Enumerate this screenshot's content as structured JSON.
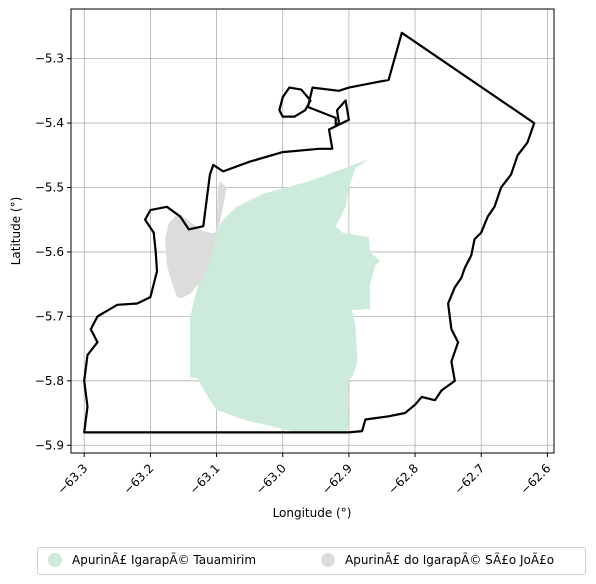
{
  "chart_data": {
    "type": "map",
    "xlabel": "Longitude (°)",
    "ylabel": "Latitude (°)",
    "xlim": [
      -63.32,
      -62.59
    ],
    "ylim": [
      -5.912,
      -5.223
    ],
    "xticks": [
      -63.3,
      -63.2,
      -63.1,
      -63.0,
      -62.9,
      -62.8,
      -62.7,
      -62.6
    ],
    "xtick_labels": [
      "−63.3",
      "−63.2",
      "−63.1",
      "−63.0",
      "−62.9",
      "−62.8",
      "−62.7",
      "−62.6"
    ],
    "yticks": [
      -5.3,
      -5.4,
      -5.5,
      -5.6,
      -5.7,
      -5.8,
      -5.9
    ],
    "ytick_labels": [
      "−5.3",
      "−5.4",
      "−5.5",
      "−5.6",
      "−5.7",
      "−5.8",
      "−5.9"
    ],
    "grid": true,
    "legend_position": "bottom, outside plot",
    "series": [
      {
        "name": "ApurinÃ£ IgarapÃ© Tauamirim",
        "color": "#cdebdb",
        "kind": "filled-polygon",
        "polygon": [
          [
            -63.07,
            -5.53
          ],
          [
            -63.03,
            -5.51
          ],
          [
            -62.96,
            -5.49
          ],
          [
            -62.92,
            -5.475
          ],
          [
            -62.87,
            -5.456
          ],
          [
            -62.89,
            -5.47
          ],
          [
            -62.9,
            -5.5
          ],
          [
            -62.905,
            -5.53
          ],
          [
            -62.92,
            -5.56
          ],
          [
            -62.91,
            -5.57
          ],
          [
            -62.87,
            -5.577
          ],
          [
            -62.868,
            -5.6
          ],
          [
            -62.853,
            -5.614
          ],
          [
            -62.86,
            -5.62
          ],
          [
            -62.868,
            -5.65
          ],
          [
            -62.868,
            -5.688
          ],
          [
            -62.885,
            -5.69
          ],
          [
            -62.895,
            -5.69
          ],
          [
            -62.89,
            -5.715
          ],
          [
            -62.887,
            -5.77
          ],
          [
            -62.893,
            -5.79
          ],
          [
            -62.9,
            -5.8
          ],
          [
            -62.902,
            -5.83
          ],
          [
            -62.9,
            -5.86
          ],
          [
            -62.903,
            -5.88
          ],
          [
            -62.98,
            -5.88
          ],
          [
            -63.02,
            -5.87
          ],
          [
            -63.06,
            -5.86
          ],
          [
            -63.1,
            -5.845
          ],
          [
            -63.11,
            -5.83
          ],
          [
            -63.13,
            -5.795
          ],
          [
            -63.14,
            -5.795
          ],
          [
            -63.14,
            -5.75
          ],
          [
            -63.14,
            -5.7
          ],
          [
            -63.13,
            -5.66
          ],
          [
            -63.12,
            -5.62
          ],
          [
            -63.11,
            -5.58
          ],
          [
            -63.09,
            -5.55
          ]
        ]
      },
      {
        "name": "ApurinÃ£ do IgarapÃ© SÃ£o JoÃ£o",
        "color": "#dcdcdc",
        "kind": "filled-polygon",
        "polygon": [
          [
            -63.158,
            -5.54
          ],
          [
            -63.14,
            -5.553
          ],
          [
            -63.12,
            -5.568
          ],
          [
            -63.1,
            -5.572
          ],
          [
            -63.094,
            -5.55
          ],
          [
            -63.09,
            -5.53
          ],
          [
            -63.085,
            -5.5
          ],
          [
            -63.095,
            -5.49
          ],
          [
            -63.098,
            -5.5
          ],
          [
            -63.1,
            -5.56
          ],
          [
            -63.105,
            -5.6
          ],
          [
            -63.12,
            -5.64
          ],
          [
            -63.14,
            -5.665
          ],
          [
            -63.153,
            -5.672
          ],
          [
            -63.16,
            -5.67
          ],
          [
            -63.17,
            -5.64
          ],
          [
            -63.175,
            -5.62
          ],
          [
            -63.178,
            -5.58
          ],
          [
            -63.172,
            -5.555
          ]
        ]
      }
    ],
    "outline": {
      "color": "#000000",
      "kind": "boundary-line",
      "path": [
        [
          -63.3,
          -5.88
        ],
        [
          -62.9,
          -5.88
        ],
        [
          -62.88,
          -5.878
        ],
        [
          -62.875,
          -5.86
        ],
        [
          -62.84,
          -5.855
        ],
        [
          -62.815,
          -5.85
        ],
        [
          -62.8,
          -5.837
        ],
        [
          -62.79,
          -5.825
        ],
        [
          -62.77,
          -5.83
        ],
        [
          -62.76,
          -5.815
        ],
        [
          -62.74,
          -5.8
        ],
        [
          -62.745,
          -5.77
        ],
        [
          -62.735,
          -5.74
        ],
        [
          -62.745,
          -5.72
        ],
        [
          -62.75,
          -5.68
        ],
        [
          -62.74,
          -5.655
        ],
        [
          -62.73,
          -5.64
        ],
        [
          -62.725,
          -5.625
        ],
        [
          -62.715,
          -5.605
        ],
        [
          -62.71,
          -5.58
        ],
        [
          -62.7,
          -5.57
        ],
        [
          -62.69,
          -5.545
        ],
        [
          -62.68,
          -5.53
        ],
        [
          -62.67,
          -5.5
        ],
        [
          -62.655,
          -5.48
        ],
        [
          -62.645,
          -5.45
        ],
        [
          -62.63,
          -5.43
        ],
        [
          -62.62,
          -5.4
        ],
        [
          -62.82,
          -5.26
        ],
        [
          -62.84,
          -5.333
        ],
        [
          -62.9,
          -5.345
        ],
        [
          -62.915,
          -5.35
        ],
        [
          -62.955,
          -5.345
        ],
        [
          -62.962,
          -5.375
        ],
        [
          -62.92,
          -5.392
        ],
        [
          -62.92,
          -5.405
        ],
        [
          -62.915,
          -5.4
        ],
        [
          -62.918,
          -5.38
        ],
        [
          -62.905,
          -5.365
        ],
        [
          -62.9,
          -5.395
        ],
        [
          -62.93,
          -5.41
        ],
        [
          -62.925,
          -5.44
        ],
        [
          -62.945,
          -5.44
        ],
        [
          -63.0,
          -5.445
        ],
        [
          -63.05,
          -5.46
        ],
        [
          -63.09,
          -5.475
        ],
        [
          -63.105,
          -5.465
        ],
        [
          -63.11,
          -5.48
        ],
        [
          -63.115,
          -5.52
        ],
        [
          -63.12,
          -5.56
        ],
        [
          -63.142,
          -5.565
        ],
        [
          -63.155,
          -5.545
        ],
        [
          -63.175,
          -5.53
        ],
        [
          -63.2,
          -5.535
        ],
        [
          -63.208,
          -5.55
        ],
        [
          -63.195,
          -5.57
        ],
        [
          -63.192,
          -5.6
        ],
        [
          -63.19,
          -5.63
        ],
        [
          -63.2,
          -5.67
        ],
        [
          -63.22,
          -5.68
        ],
        [
          -63.25,
          -5.682
        ],
        [
          -63.28,
          -5.7
        ],
        [
          -63.29,
          -5.72
        ],
        [
          -63.28,
          -5.74
        ],
        [
          -63.295,
          -5.76
        ],
        [
          -63.3,
          -5.8
        ],
        [
          -63.295,
          -5.84
        ],
        [
          -63.3,
          -5.88
        ]
      ],
      "detached_loop": [
        [
          -62.972,
          -5.348
        ],
        [
          -62.99,
          -5.345
        ],
        [
          -63.0,
          -5.36
        ],
        [
          -63.005,
          -5.38
        ],
        [
          -63.0,
          -5.39
        ],
        [
          -62.982,
          -5.39
        ],
        [
          -62.966,
          -5.38
        ],
        [
          -62.958,
          -5.365
        ]
      ]
    }
  },
  "legend": {
    "item1_label": "ApurinÃ£ IgarapÃ© Tauamirim",
    "item2_label": "ApurinÃ£ do IgarapÃ© SÃ£o JoÃ£o"
  }
}
